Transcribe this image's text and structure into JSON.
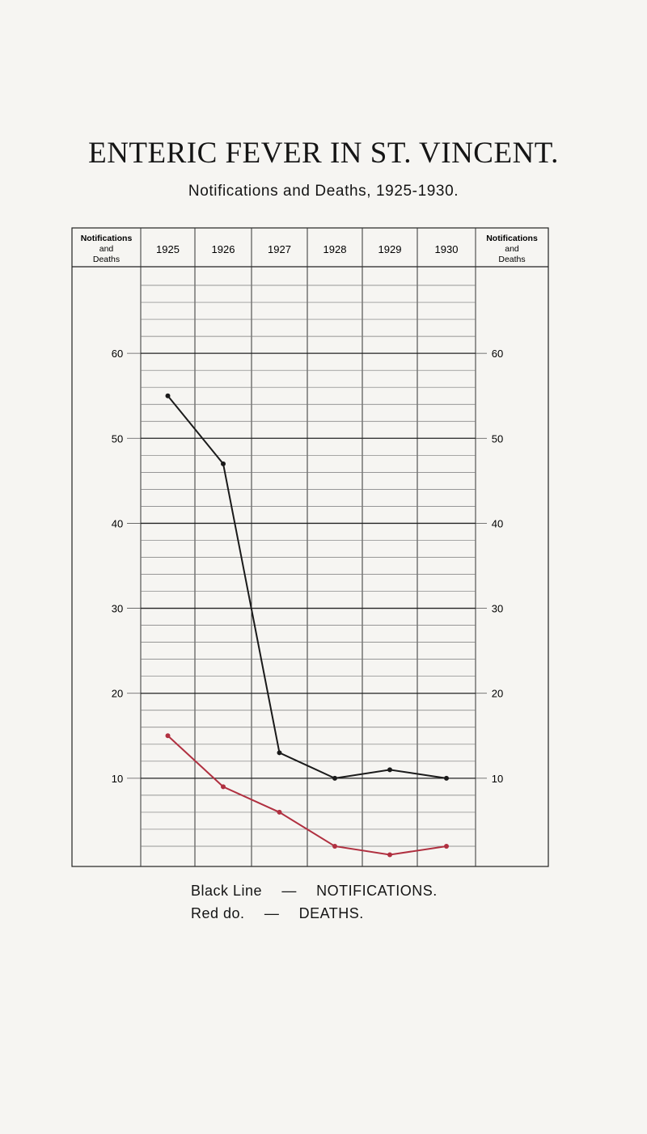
{
  "title": "ENTERIC FEVER IN ST. VINCENT.",
  "subtitle": "Notifications and Deaths, 1925-1930.",
  "chart_data": {
    "type": "line",
    "categories": [
      "1925",
      "1926",
      "1927",
      "1928",
      "1929",
      "1930"
    ],
    "left_header": [
      "Notifications",
      "and",
      "Deaths"
    ],
    "right_header": [
      "Notifications",
      "and",
      "Deaths"
    ],
    "y_ticks": [
      10,
      20,
      30,
      40,
      50,
      60
    ],
    "ylim": [
      0,
      70
    ],
    "grid": true,
    "series": [
      {
        "name": "NOTIFICATIONS",
        "color": "#1a1a1a",
        "values": [
          55,
          47,
          13,
          10,
          11,
          10
        ]
      },
      {
        "name": "DEATHS",
        "color": "#b03040",
        "values": [
          15,
          9,
          6,
          2,
          1,
          2
        ]
      }
    ],
    "legend": [
      {
        "label": "Black Line",
        "sep": "—",
        "text": "NOTIFICATIONS."
      },
      {
        "label": "Red   do.",
        "sep": "—",
        "text": "DEATHS."
      }
    ],
    "legend_placement": "bottom"
  }
}
